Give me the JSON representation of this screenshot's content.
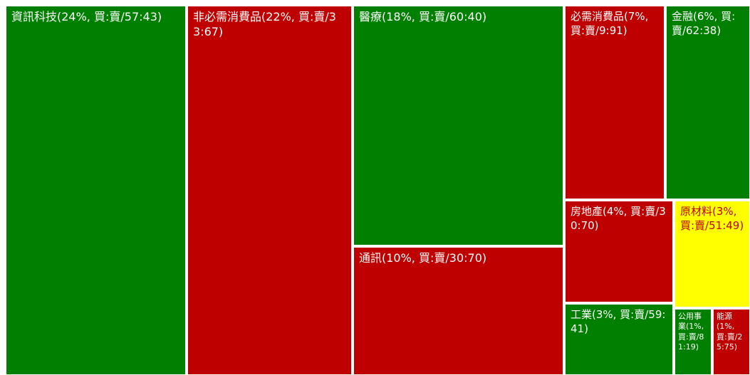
{
  "colors": {
    "buy": "#007f00",
    "sell": "#bf0000",
    "neutral": "#ffff00",
    "border": "#ffffff",
    "text_on_dark": "#ffffff",
    "text_on_light": "#bf0000"
  },
  "chart_data": {
    "type": "treemap",
    "title": "",
    "sectors": [
      {
        "label": "資訊科技(24%, 買:賣/57:43)",
        "weight": 24,
        "buy": 57,
        "sell": 43,
        "status": "buy"
      },
      {
        "label": "非必需消費品(22%, 買:賣/33:67)",
        "weight": 22,
        "buy": 33,
        "sell": 67,
        "status": "sell"
      },
      {
        "label": "醫療(18%, 買:賣/60:40)",
        "weight": 18,
        "buy": 60,
        "sell": 40,
        "status": "buy"
      },
      {
        "label": "通訊(10%, 買:賣/30:70)",
        "weight": 10,
        "buy": 30,
        "sell": 70,
        "status": "sell"
      },
      {
        "label": "必需消費品(7%, 買:賣/9:91)",
        "weight": 7,
        "buy": 9,
        "sell": 91,
        "status": "sell"
      },
      {
        "label": "金融(6%, 買:賣/62:38)",
        "weight": 6,
        "buy": 62,
        "sell": 38,
        "status": "buy"
      },
      {
        "label": "房地產(4%, 買:賣/30:70)",
        "weight": 4,
        "buy": 30,
        "sell": 70,
        "status": "sell"
      },
      {
        "label": "原材料(3%, 買:賣/51:49)",
        "weight": 3,
        "buy": 51,
        "sell": 49,
        "status": "neutral"
      },
      {
        "label": "工業(3%, 買:賣/59:41)",
        "weight": 3,
        "buy": 59,
        "sell": 41,
        "status": "buy"
      },
      {
        "label": "公用事業(1%, 買:賣/81:19)",
        "weight": 1,
        "buy": 81,
        "sell": 19,
        "status": "buy"
      },
      {
        "label": "能源(1%, 買:賣/25:75)",
        "weight": 1,
        "buy": 25,
        "sell": 75,
        "status": "sell"
      }
    ]
  }
}
